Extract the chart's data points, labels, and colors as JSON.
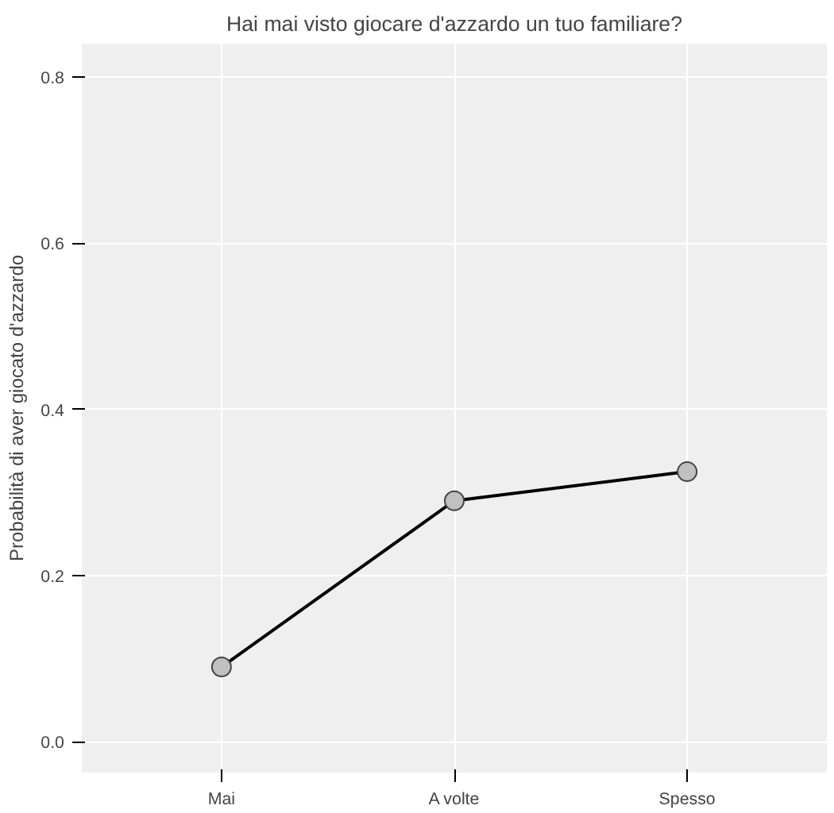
{
  "chart_data": {
    "type": "line",
    "title": "Hai mai visto giocare d'azzardo un tuo familiare?",
    "ylabel": "Probabilità di aver giocato d'azzardo",
    "categories": [
      "Mai",
      "A volte",
      "Spesso"
    ],
    "series": [
      {
        "color": "#000000",
        "values": [
          0.09,
          0.29,
          0.325
        ]
      }
    ],
    "ylim": [
      -0.037,
      0.84
    ],
    "yticks": [
      {
        "value": 0,
        "label": "0.0"
      },
      0.2,
      0.4,
      0.6,
      0.8
    ],
    "grid": true,
    "marker": "circle",
    "line_style": "solid"
  }
}
